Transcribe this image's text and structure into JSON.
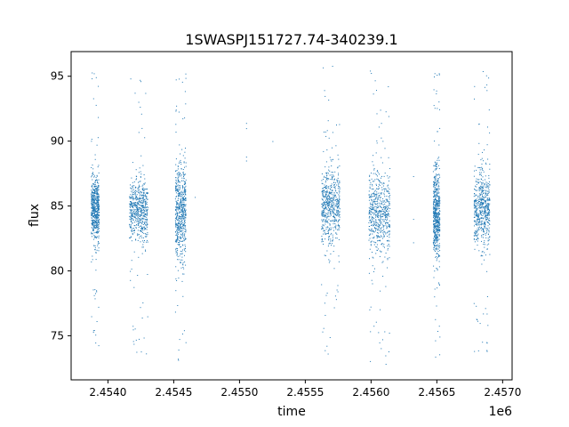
{
  "chart_data": {
    "type": "scatter",
    "title": "1SWASPJ151727.74-340239.1",
    "xlabel": "time",
    "ylabel": "flux",
    "x_offset_label": "1e6",
    "xlim": [
      2453720,
      2457072
    ],
    "ylim": [
      71.6,
      96.9
    ],
    "x_ticks": [
      {
        "value": 2454000,
        "label": "2.4540"
      },
      {
        "value": 2454500,
        "label": "2.4545"
      },
      {
        "value": 2455000,
        "label": "2.4550"
      },
      {
        "value": 2455500,
        "label": "2.4555"
      },
      {
        "value": 2456000,
        "label": "2.4560"
      },
      {
        "value": 2456500,
        "label": "2.4565"
      },
      {
        "value": 2457000,
        "label": "2.4570"
      }
    ],
    "y_ticks": [
      {
        "value": 75,
        "label": "75"
      },
      {
        "value": 80,
        "label": "80"
      },
      {
        "value": 85,
        "label": "85"
      },
      {
        "value": 90,
        "label": "90"
      },
      {
        "value": 95,
        "label": "95"
      }
    ],
    "grid": false,
    "marker_color": "#1f77b4",
    "seasons": [
      {
        "start": 2453870,
        "end": 2453930,
        "center": 84.8,
        "spread": 2.6,
        "outlier_low": 73.5,
        "outlier_high": 95.8
      },
      {
        "start": 2454160,
        "end": 2454300,
        "center": 84.7,
        "spread": 2.6,
        "outlier_low": 73.3,
        "outlier_high": 95.6
      },
      {
        "start": 2454510,
        "end": 2454590,
        "center": 84.5,
        "spread": 4.0,
        "outlier_low": 73.0,
        "outlier_high": 95.5
      },
      {
        "start": 2455620,
        "end": 2455760,
        "center": 85.0,
        "spread": 3.2,
        "outlier_low": 73.0,
        "outlier_high": 95.8
      },
      {
        "start": 2455980,
        "end": 2456140,
        "center": 84.5,
        "spread": 3.6,
        "outlier_low": 72.8,
        "outlier_high": 95.9
      },
      {
        "start": 2456470,
        "end": 2456520,
        "center": 84.3,
        "spread": 3.8,
        "outlier_low": 73.0,
        "outlier_high": 95.6
      },
      {
        "start": 2456780,
        "end": 2456900,
        "center": 84.8,
        "spread": 3.4,
        "outlier_low": 72.9,
        "outlier_high": 95.8
      }
    ],
    "sparse_points": [
      {
        "x": 2454660,
        "y": 85.7
      },
      {
        "x": 2455050,
        "y": 91.4
      },
      {
        "x": 2455050,
        "y": 91.0
      },
      {
        "x": 2455050,
        "y": 88.8
      },
      {
        "x": 2455050,
        "y": 88.5
      },
      {
        "x": 2455250,
        "y": 90.0
      },
      {
        "x": 2456320,
        "y": 87.3
      },
      {
        "x": 2456320,
        "y": 84.0
      },
      {
        "x": 2456320,
        "y": 82.2
      }
    ]
  }
}
